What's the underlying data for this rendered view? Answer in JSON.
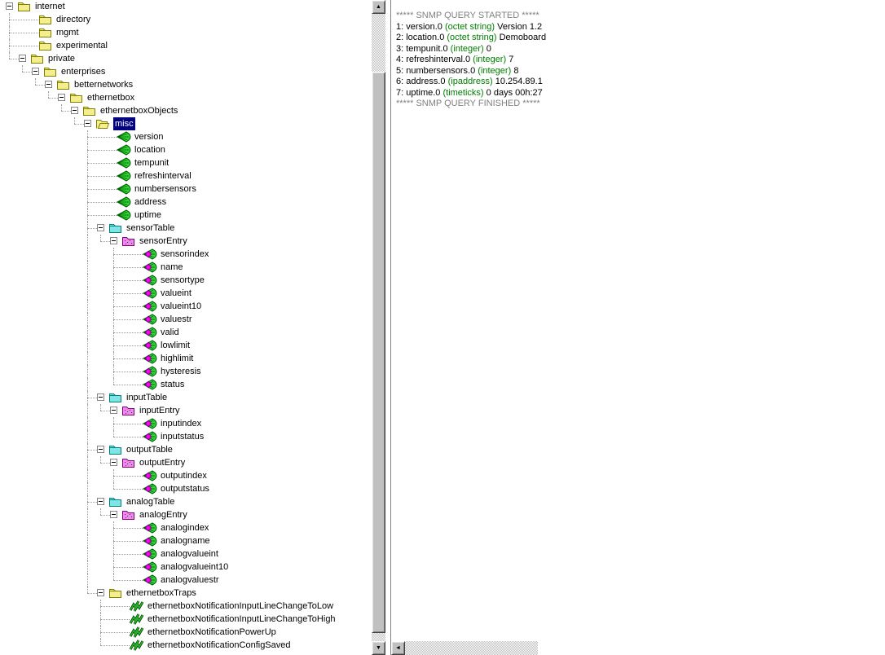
{
  "colors": {
    "selection_bg": "#000080",
    "selection_text": "#ffffff",
    "banner_gray": "#808080",
    "type_green": "#008000",
    "text_black": "#000000",
    "folder_yellow": "#f6ee8c",
    "folder_yellow_border": "#808000",
    "table_folder_cyan": "#7fe4e4",
    "table_folder_border": "#008080",
    "entry_folder_magenta": "#e88ee8",
    "entry_folder_border": "#800080",
    "leaf_green": "#2fd435",
    "leaf_green_dark": "#005f00",
    "diamond_magenta": "#ff00ff",
    "trap_green": "#22bb22"
  },
  "tree": {
    "items": [
      {
        "label": "internet",
        "level": 0,
        "icon": "folder",
        "expand": true
      },
      {
        "label": "directory",
        "level": 1,
        "icon": "folder"
      },
      {
        "label": "mgmt",
        "level": 1,
        "icon": "folder"
      },
      {
        "label": "experimental",
        "level": 1,
        "icon": "folder"
      },
      {
        "label": "private",
        "level": 1,
        "icon": "folder",
        "expand": true
      },
      {
        "label": "enterprises",
        "level": 2,
        "icon": "folder",
        "expand": true
      },
      {
        "label": "betternetworks",
        "level": 3,
        "icon": "folder",
        "expand": true
      },
      {
        "label": "ethernetbox",
        "level": 4,
        "icon": "folder",
        "expand": true
      },
      {
        "label": "ethernetboxObjects",
        "level": 5,
        "icon": "folder",
        "expand": true
      },
      {
        "label": "misc",
        "level": 6,
        "icon": "folder-open",
        "expand": true,
        "selected": true
      },
      {
        "label": "version",
        "level": 7,
        "icon": "leaf"
      },
      {
        "label": "location",
        "level": 7,
        "icon": "leaf"
      },
      {
        "label": "tempunit",
        "level": 7,
        "icon": "leaf"
      },
      {
        "label": "refreshinterval",
        "level": 7,
        "icon": "leaf"
      },
      {
        "label": "numbersensors",
        "level": 7,
        "icon": "leaf"
      },
      {
        "label": "address",
        "level": 7,
        "icon": "leaf"
      },
      {
        "label": "uptime",
        "level": 7,
        "icon": "leaf"
      },
      {
        "label": "sensorTable",
        "level": 7,
        "icon": "table-folder",
        "expand": true
      },
      {
        "label": "sensorEntry",
        "level": 8,
        "icon": "entry-folder",
        "expand": true
      },
      {
        "label": "sensorindex",
        "level": 9,
        "icon": "column-leaf"
      },
      {
        "label": "name",
        "level": 9,
        "icon": "column-leaf"
      },
      {
        "label": "sensortype",
        "level": 9,
        "icon": "column-leaf"
      },
      {
        "label": "valueint",
        "level": 9,
        "icon": "column-leaf"
      },
      {
        "label": "valueint10",
        "level": 9,
        "icon": "column-leaf"
      },
      {
        "label": "valuestr",
        "level": 9,
        "icon": "column-leaf"
      },
      {
        "label": "valid",
        "level": 9,
        "icon": "column-leaf"
      },
      {
        "label": "lowlimit",
        "level": 9,
        "icon": "column-leaf"
      },
      {
        "label": "highlimit",
        "level": 9,
        "icon": "column-leaf"
      },
      {
        "label": "hysteresis",
        "level": 9,
        "icon": "column-leaf"
      },
      {
        "label": "status",
        "level": 9,
        "icon": "column-leaf"
      },
      {
        "label": "inputTable",
        "level": 7,
        "icon": "table-folder",
        "expand": true
      },
      {
        "label": "inputEntry",
        "level": 8,
        "icon": "entry-folder",
        "expand": true
      },
      {
        "label": "inputindex",
        "level": 9,
        "icon": "column-leaf"
      },
      {
        "label": "inputstatus",
        "level": 9,
        "icon": "column-leaf"
      },
      {
        "label": "outputTable",
        "level": 7,
        "icon": "table-folder",
        "expand": true
      },
      {
        "label": "outputEntry",
        "level": 8,
        "icon": "entry-folder",
        "expand": true
      },
      {
        "label": "outputindex",
        "level": 9,
        "icon": "column-leaf"
      },
      {
        "label": "outputstatus",
        "level": 9,
        "icon": "column-leaf"
      },
      {
        "label": "analogTable",
        "level": 7,
        "icon": "table-folder",
        "expand": true
      },
      {
        "label": "analogEntry",
        "level": 8,
        "icon": "entry-folder",
        "expand": true
      },
      {
        "label": "analogindex",
        "level": 9,
        "icon": "column-leaf"
      },
      {
        "label": "analogname",
        "level": 9,
        "icon": "column-leaf"
      },
      {
        "label": "analogvalueint",
        "level": 9,
        "icon": "column-leaf"
      },
      {
        "label": "analogvalueint10",
        "level": 9,
        "icon": "column-leaf"
      },
      {
        "label": "analogvaluestr",
        "level": 9,
        "icon": "column-leaf"
      },
      {
        "label": "ethernetboxTraps",
        "level": 7,
        "icon": "folder",
        "expand": true
      },
      {
        "label": "ethernetboxNotificationInputLineChangeToLow",
        "level": 8,
        "icon": "trap"
      },
      {
        "label": "ethernetboxNotificationInputLineChangeToHigh",
        "level": 8,
        "icon": "trap"
      },
      {
        "label": "ethernetboxNotificationPowerUp",
        "level": 8,
        "icon": "trap"
      },
      {
        "label": "ethernetboxNotificationConfigSaved",
        "level": 8,
        "icon": "trap"
      }
    ]
  },
  "output": {
    "lines": [
      {
        "style": "banner",
        "text": "***** SNMP QUERY STARTED *****"
      },
      {
        "style": "result",
        "prefix": "1: version.0",
        "type": "(octet string)",
        "value": "Version 1.2"
      },
      {
        "style": "result",
        "prefix": "2: location.0",
        "type": "(octet string)",
        "value": "Demoboard"
      },
      {
        "style": "result",
        "prefix": "3: tempunit.0",
        "type": "(integer)",
        "value": "0"
      },
      {
        "style": "result",
        "prefix": "4: refreshinterval.0",
        "type": "(integer)",
        "value": "7"
      },
      {
        "style": "result",
        "prefix": "5: numbersensors.0",
        "type": "(integer)",
        "value": "8"
      },
      {
        "style": "result",
        "prefix": "6: address.0",
        "type": "(ipaddress)",
        "value": "10.254.89.1"
      },
      {
        "style": "result",
        "prefix": "7: uptime.0",
        "type": "(timeticks)",
        "value": "0 days 00h:27"
      },
      {
        "style": "banner",
        "text": "***** SNMP QUERY FINISHED *****"
      }
    ]
  },
  "scrollbar": {
    "up_arrow": "▲",
    "down_arrow": "▼",
    "left_arrow": "◄"
  }
}
